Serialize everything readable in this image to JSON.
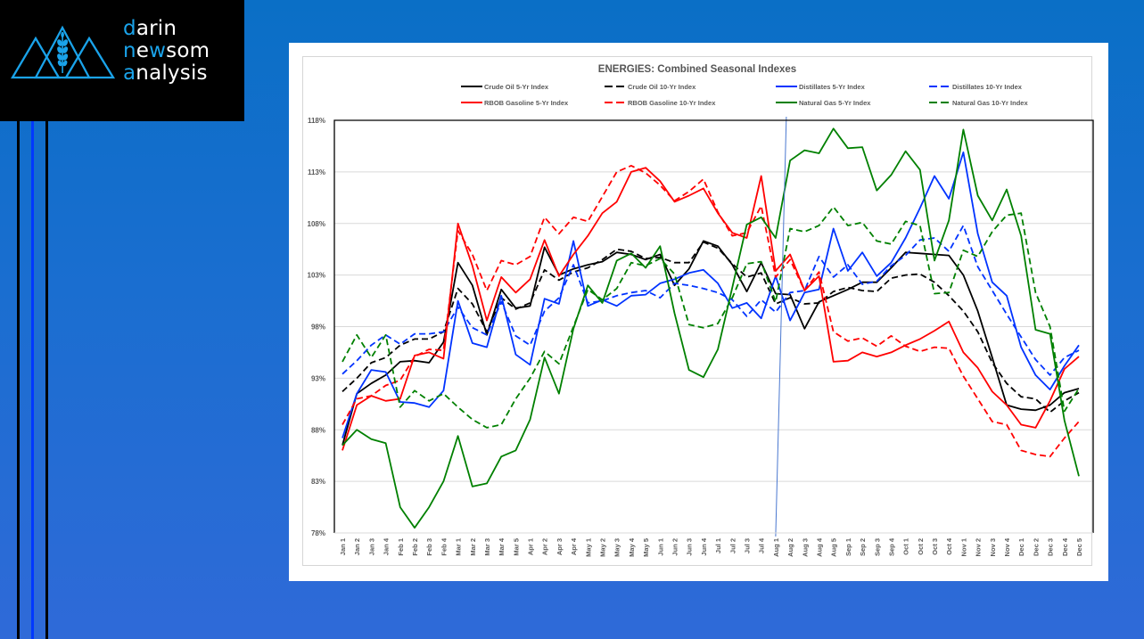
{
  "brand": {
    "lines": [
      {
        "accent": "d",
        "rest": "arin"
      },
      {
        "accent": "n",
        "mid1": "e",
        "accent2": "w",
        "rest": "som"
      },
      {
        "accent": "a",
        "rest": "nalysis"
      }
    ],
    "name": "darin newsom analysis",
    "accent_color": "#1aa3ea"
  },
  "chart_data": {
    "type": "line",
    "title": "ENERGIES: Combined Seasonal Indexes",
    "xlabel": "",
    "ylabel": "",
    "ylim": [
      78,
      118
    ],
    "yticks": [
      "78%",
      "83%",
      "88%",
      "93%",
      "98%",
      "103%",
      "108%",
      "113%",
      "118%"
    ],
    "grid": true,
    "legend_position": "top",
    "marker_line_label": "Aug 1",
    "categories": [
      "Jan 1",
      "Jan 2",
      "Jan 3",
      "Jan 4",
      "Feb 1",
      "Feb 2",
      "Feb 3",
      "Feb 4",
      "Mar 1",
      "Mar 2",
      "Mar 3",
      "Mar 4",
      "Mar 5",
      "Apr 1",
      "Apr 2",
      "Apr 3",
      "Apr 4",
      "May 1",
      "May 2",
      "May 3",
      "May 4",
      "May 5",
      "Jun 1",
      "Jun 2",
      "Jun 3",
      "Jun 4",
      "Jul 1",
      "Jul 2",
      "Jul 3",
      "Jul 4",
      "Aug 1",
      "Aug 2",
      "Aug 3",
      "Aug 4",
      "Aug 5",
      "Sep 1",
      "Sep 2",
      "Sep 3",
      "Sep 4",
      "Oct 1",
      "Oct 2",
      "Oct 3",
      "Oct 4",
      "Nov 1",
      "Nov 2",
      "Nov 3",
      "Nov 4",
      "Dec 1",
      "Dec 2",
      "Dec 3",
      "Dec 4",
      "Dec 5"
    ],
    "series": [
      {
        "name": "Crude Oil 5-Yr Index",
        "color": "#000000",
        "dash": false,
        "values": [
          86.5,
          91.5,
          92.5,
          93.3,
          94.6,
          94.7,
          94.5,
          96.5,
          104.2,
          102.0,
          97.2,
          101.6,
          99.8,
          100.0,
          105.7,
          103.0,
          103.6,
          104.0,
          104.3,
          105.2,
          105.0,
          104.5,
          105.0,
          102.0,
          103.6,
          106.3,
          105.8,
          104.0,
          101.4,
          104.2,
          101.2,
          101.1,
          97.8,
          100.4,
          101.0,
          101.6,
          102.3,
          102.3,
          103.7,
          105.2,
          105.1,
          105.0,
          104.9,
          103.0,
          99.5,
          95.0,
          90.4,
          90.0,
          89.9,
          90.4,
          91.6,
          92.0
        ]
      },
      {
        "name": "Crude Oil 10-Yr Index",
        "color": "#000000",
        "dash": true,
        "values": [
          91.7,
          93.0,
          94.5,
          95.0,
          96.2,
          96.8,
          96.8,
          97.5,
          101.7,
          100.2,
          97.5,
          100.8,
          99.7,
          100.3,
          103.5,
          102.5,
          103.3,
          103.7,
          104.5,
          105.5,
          105.3,
          104.6,
          104.7,
          104.2,
          104.2,
          106.2,
          105.6,
          104.1,
          102.8,
          103.2,
          100.2,
          100.8,
          100.2,
          100.3,
          101.4,
          101.8,
          101.5,
          101.4,
          102.7,
          103.0,
          103.1,
          102.3,
          101.0,
          99.5,
          97.5,
          94.5,
          92.5,
          91.2,
          91.0,
          89.7,
          90.8,
          91.6
        ]
      },
      {
        "name": "Distillates 5-Yr Index",
        "color": "#0033ff",
        "dash": false,
        "values": [
          87.2,
          91.5,
          93.8,
          93.6,
          90.7,
          90.6,
          90.2,
          91.8,
          100.5,
          96.4,
          96.0,
          101.0,
          95.3,
          94.3,
          100.7,
          100.2,
          106.3,
          100.0,
          100.6,
          100.0,
          101.0,
          101.1,
          102.2,
          102.6,
          103.2,
          103.5,
          102.2,
          99.8,
          100.3,
          98.8,
          102.9,
          98.6,
          101.3,
          101.6,
          107.5,
          103.4,
          105.2,
          102.9,
          104.2,
          106.6,
          109.5,
          112.6,
          110.4,
          114.9,
          107.0,
          102.3,
          101.0,
          96.0,
          93.3,
          91.9,
          94.2,
          96.2
        ]
      },
      {
        "name": "Distillates 10-Yr Index",
        "color": "#0033ff",
        "dash": true,
        "values": [
          93.4,
          94.7,
          96.2,
          97.2,
          96.3,
          97.3,
          97.3,
          97.5,
          99.9,
          97.9,
          97.2,
          100.4,
          97.1,
          96.2,
          99.5,
          100.8,
          104.0,
          100.3,
          100.5,
          101.0,
          101.3,
          101.5,
          100.8,
          102.2,
          102.0,
          101.7,
          101.3,
          100.6,
          99.0,
          100.6,
          99.4,
          101.3,
          101.5,
          104.8,
          102.8,
          104.0,
          102.1,
          102.4,
          103.9,
          104.9,
          106.4,
          106.6,
          105.3,
          107.8,
          103.8,
          101.5,
          99.2,
          97.0,
          94.8,
          93.3,
          95.0,
          95.7
        ]
      },
      {
        "name": "RBOB Gasoline 5-Yr Index",
        "color": "#ff0000",
        "dash": false,
        "values": [
          86.0,
          90.4,
          91.3,
          90.8,
          91.0,
          95.2,
          95.5,
          94.9,
          108.0,
          103.9,
          98.6,
          102.8,
          101.3,
          102.6,
          106.4,
          102.9,
          105.0,
          106.8,
          109.0,
          110.1,
          113.0,
          113.4,
          112.1,
          110.1,
          110.7,
          111.4,
          109.0,
          107.1,
          106.6,
          112.6,
          103.4,
          105.0,
          101.5,
          102.9,
          94.6,
          94.7,
          95.5,
          95.1,
          95.5,
          96.2,
          96.8,
          97.6,
          98.5,
          95.5,
          94.0,
          91.7,
          90.4,
          88.5,
          88.2,
          90.8,
          93.9,
          95.1
        ]
      },
      {
        "name": "RBOB Gasoline 10-Yr Index",
        "color": "#ff0000",
        "dash": true,
        "values": [
          88.5,
          91.0,
          91.3,
          92.3,
          92.8,
          95.1,
          95.8,
          95.7,
          107.3,
          105.0,
          101.5,
          104.4,
          104.0,
          104.8,
          108.6,
          107.0,
          108.6,
          108.2,
          110.6,
          113.0,
          113.6,
          112.9,
          111.7,
          110.2,
          111.1,
          112.3,
          109.1,
          106.8,
          107.1,
          109.7,
          102.8,
          104.5,
          101.5,
          103.3,
          97.5,
          96.6,
          96.9,
          96.1,
          97.1,
          96.1,
          95.6,
          96.0,
          95.9,
          93.2,
          91.0,
          88.8,
          88.5,
          86.0,
          85.6,
          85.4,
          87.2,
          88.8
        ]
      },
      {
        "name": "Natural Gas 5-Yr Index",
        "color": "#008000",
        "dash": false,
        "values": [
          86.5,
          88.0,
          87.1,
          86.7,
          80.5,
          78.5,
          80.5,
          83.0,
          87.4,
          82.5,
          82.8,
          85.4,
          86.0,
          89.0,
          95.0,
          91.5,
          97.8,
          102.0,
          100.3,
          104.4,
          105.1,
          103.7,
          105.8,
          99.3,
          93.8,
          93.1,
          95.8,
          101.8,
          107.9,
          108.6,
          106.6,
          114.1,
          115.1,
          114.8,
          117.2,
          115.3,
          115.4,
          111.2,
          112.7,
          115.0,
          113.2,
          104.4,
          108.3,
          117.1,
          110.7,
          108.3,
          111.3,
          106.8,
          97.7,
          97.3,
          88.9,
          83.5
        ]
      },
      {
        "name": "Natural Gas 10-Yr Index",
        "color": "#008000",
        "dash": true,
        "values": [
          94.6,
          97.2,
          95.0,
          97.2,
          90.2,
          91.8,
          90.8,
          91.5,
          90.2,
          89.0,
          88.2,
          88.5,
          91.0,
          93.0,
          95.6,
          94.4,
          98.0,
          101.6,
          100.6,
          101.7,
          104.2,
          103.9,
          104.6,
          103.1,
          98.2,
          97.9,
          98.3,
          100.8,
          104.1,
          104.3,
          100.4,
          107.5,
          107.2,
          107.8,
          109.6,
          107.8,
          108.1,
          106.3,
          106.0,
          108.2,
          107.8,
          101.2,
          101.3,
          105.4,
          104.8,
          107.2,
          108.8,
          109.0,
          101.3,
          98.0,
          89.8,
          92.0
        ]
      }
    ]
  }
}
